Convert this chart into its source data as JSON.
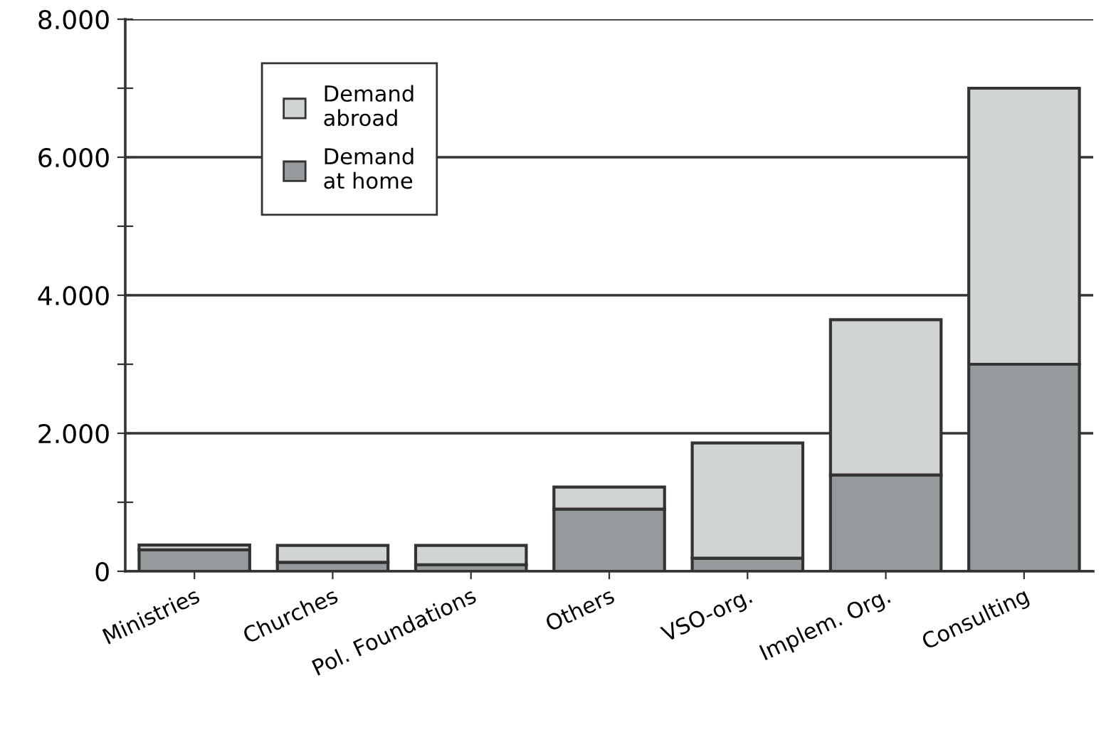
{
  "chart_data": {
    "type": "bar",
    "stacked": true,
    "categories": [
      "Ministries",
      "Churches",
      "Pol. Foundations",
      "Others",
      "VSO-org.",
      "Implem. Org.",
      "Consulting"
    ],
    "series": [
      {
        "name": "Demand\nat home",
        "color": "#959b9c",
        "values": [
          310,
          130,
          95,
          900,
          190,
          1395,
          3000
        ]
      },
      {
        "name": "Demand\nabroad",
        "color": "#d1d4d5",
        "values": [
          70,
          245,
          280,
          320,
          1670,
          2250,
          4000
        ]
      }
    ],
    "ylim": [
      0,
      8000
    ],
    "yticks": [
      {
        "value": 0,
        "label": "0"
      },
      {
        "value": 1000,
        "label": null
      },
      {
        "value": 2000,
        "label": "2.000"
      },
      {
        "value": 3000,
        "label": null
      },
      {
        "value": 4000,
        "label": "4.000"
      },
      {
        "value": 5000,
        "label": null
      },
      {
        "value": 6000,
        "label": "6.000"
      },
      {
        "value": 7000,
        "label": null
      },
      {
        "value": 8000,
        "label": "8.000"
      }
    ],
    "grid": "y",
    "legend": "top left"
  }
}
